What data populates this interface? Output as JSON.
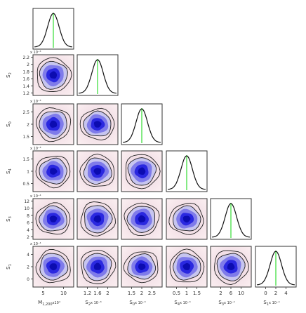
{
  "chart_data": {
    "type": "corner",
    "parameters": [
      {
        "label": "M",
        "sub": "1,200",
        "exp": "x10⁴",
        "ticks": [
          "5",
          "10"
        ],
        "mean": 7.4
      },
      {
        "label": "S",
        "sub": "2",
        "exp": "x 10⁻³",
        "ticks": [
          "1.2",
          "1.6",
          "2"
        ],
        "mean": 1.6
      },
      {
        "label": "S",
        "sub": "0",
        "exp": "x 10⁻³",
        "ticks": [
          "1.5",
          "2",
          "2.5"
        ],
        "mean": 2.0
      },
      {
        "label": "S",
        "sub": "4",
        "exp": "x 10⁻³",
        "ticks": [
          "0.5",
          "1",
          "1.5"
        ],
        "mean": 1.0
      },
      {
        "label": "S",
        "sub": "3",
        "exp": "x 10⁻⁴",
        "ticks": [
          "2",
          "6",
          "10"
        ],
        "mean": 6.5
      },
      {
        "label": "S",
        "sub": "1",
        "exp": "x 10⁻⁴",
        "ticks": [
          "0",
          "2",
          "4"
        ],
        "mean": 2.2
      }
    ],
    "row_axes": [
      {
        "label": "S",
        "sub": "2",
        "exp": "x 10⁻³",
        "ticks": [
          "1.2",
          "1.4",
          "1.6",
          "1.8",
          "2",
          "2.2"
        ]
      },
      {
        "label": "S",
        "sub": "0",
        "exp": "x 10⁻³",
        "ticks": [
          "1.5",
          "2",
          "2.5"
        ]
      },
      {
        "label": "S",
        "sub": "4",
        "exp": "x 10⁻³",
        "ticks": [
          "0.5",
          "1",
          "1.5"
        ]
      },
      {
        "label": "S",
        "sub": "3",
        "exp": "x 10⁻⁴",
        "ticks": [
          "2",
          "4",
          "6",
          "8",
          "10",
          "12"
        ]
      },
      {
        "label": "S",
        "sub": "1",
        "exp": "x 10⁻⁴",
        "ticks": [
          "0",
          "2",
          "4"
        ]
      }
    ],
    "marginal_line_color": "#33dd33",
    "density_colors": [
      "#fbeff1",
      "#f2dfe6",
      "#c7c5ef",
      "#7f7bea",
      "#2a28e0",
      "#0c0cb0"
    ]
  }
}
